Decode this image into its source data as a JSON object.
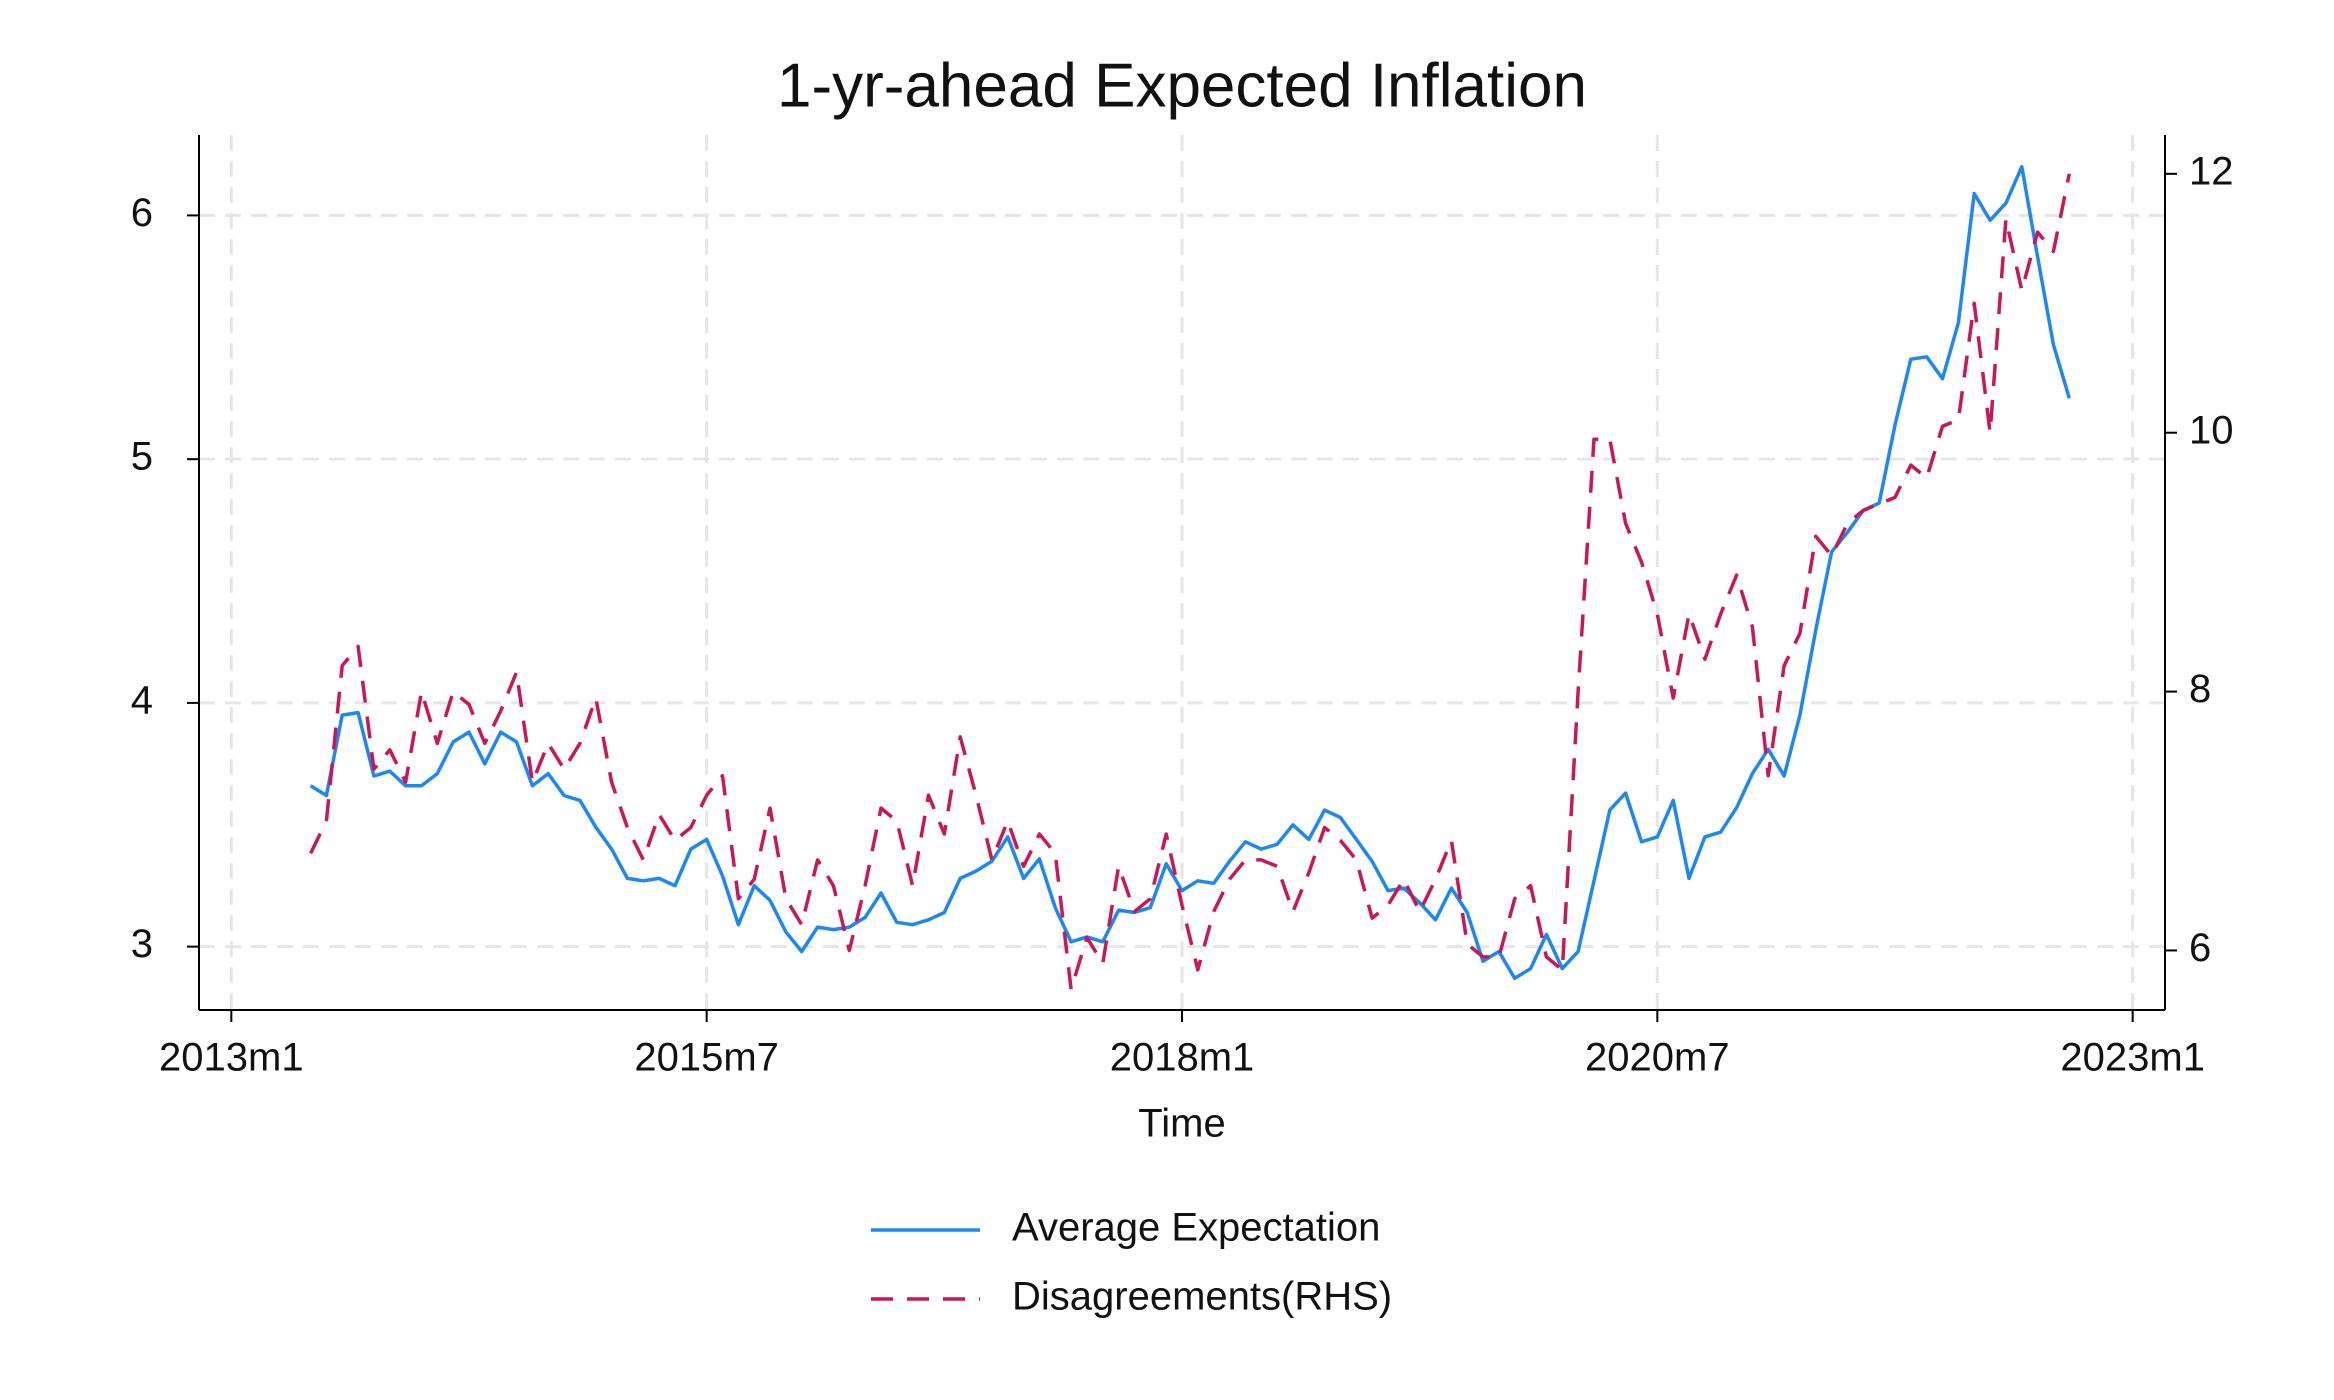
{
  "chart_data": {
    "type": "line",
    "title": "1-yr-ahead Expected Inflation",
    "xlabel": "Time",
    "x": [
      2013.4167,
      2013.5,
      2013.5833,
      2013.6667,
      2013.75,
      2013.8333,
      2013.9167,
      2014,
      2014.0833,
      2014.1667,
      2014.25,
      2014.3333,
      2014.4167,
      2014.5,
      2014.5833,
      2014.6667,
      2014.75,
      2014.8333,
      2014.9167,
      2015,
      2015.0833,
      2015.1667,
      2015.25,
      2015.3333,
      2015.4167,
      2015.5,
      2015.5833,
      2015.6667,
      2015.75,
      2015.8333,
      2015.9167,
      2016,
      2016.0833,
      2016.1667,
      2016.25,
      2016.3333,
      2016.4167,
      2016.5,
      2016.5833,
      2016.6667,
      2016.75,
      2016.8333,
      2016.9167,
      2017,
      2017.0833,
      2017.1667,
      2017.25,
      2017.3333,
      2017.4167,
      2017.5,
      2017.5833,
      2017.6667,
      2017.75,
      2017.8333,
      2017.9167,
      2018,
      2018.0833,
      2018.1667,
      2018.25,
      2018.3333,
      2018.4167,
      2018.5,
      2018.5833,
      2018.6667,
      2018.75,
      2018.8333,
      2018.9167,
      2019,
      2019.0833,
      2019.1667,
      2019.25,
      2019.3333,
      2019.4167,
      2019.5,
      2019.5833,
      2019.6667,
      2019.75,
      2019.8333,
      2019.9167,
      2020,
      2020.0833,
      2020.1667,
      2020.25,
      2020.3333,
      2020.4167,
      2020.5,
      2020.5833,
      2020.6667,
      2020.75,
      2020.8333,
      2020.9167,
      2021,
      2021.0833,
      2021.1667,
      2021.25,
      2021.3333,
      2021.4167,
      2021.5,
      2021.5833,
      2021.6667,
      2021.75,
      2021.8333,
      2021.9167,
      2022,
      2022.0833,
      2022.1667,
      2022.25,
      2022.3333,
      2022.4167,
      2022.5,
      2022.5833,
      2022.6667
    ],
    "series": [
      {
        "name": "Average Expectation",
        "color": "#1e88f0",
        "axis": "y",
        "values": [
          3.66,
          3.62,
          3.95,
          3.96,
          3.7,
          3.72,
          3.66,
          3.66,
          3.71,
          3.84,
          3.88,
          3.75,
          3.88,
          3.84,
          3.66,
          3.71,
          3.62,
          3.6,
          3.49,
          3.4,
          3.28,
          3.27,
          3.28,
          3.25,
          3.4,
          3.44,
          3.29,
          3.09,
          3.25,
          3.19,
          3.06,
          2.98,
          3.08,
          3.07,
          3.08,
          3.12,
          3.22,
          3.1,
          3.09,
          3.11,
          3.14,
          3.28,
          3.31,
          3.35,
          3.45,
          3.28,
          3.36,
          3.16,
          3.02,
          3.04,
          3.02,
          3.15,
          3.14,
          3.16,
          3.34,
          3.23,
          3.27,
          3.26,
          3.35,
          3.43,
          3.4,
          3.42,
          3.5,
          3.44,
          3.56,
          3.53,
          3.44,
          3.35,
          3.23,
          3.24,
          3.18,
          3.11,
          3.24,
          3.14,
          2.94,
          2.98,
          2.87,
          2.91,
          3.05,
          2.91,
          2.98,
          3.27,
          3.56,
          3.63,
          3.43,
          3.45,
          3.6,
          3.28,
          3.45,
          3.47,
          3.57,
          3.71,
          3.81,
          3.7,
          3.95,
          4.3,
          4.62,
          4.7,
          4.79,
          4.82,
          5.14,
          5.41,
          5.42,
          5.33,
          5.56,
          6.09,
          5.98,
          6.05,
          6.2,
          5.83,
          5.47,
          5.25
        ]
      },
      {
        "name": "Disagreements(RHS)",
        "color": "#c8175a",
        "axis": "y2",
        "dashed": true,
        "values": [
          6.75,
          7.0,
          8.2,
          8.35,
          7.4,
          7.55,
          7.3,
          8.0,
          7.6,
          8.0,
          7.9,
          7.6,
          7.85,
          8.15,
          7.3,
          7.6,
          7.4,
          7.6,
          7.95,
          7.3,
          6.95,
          6.7,
          7.05,
          6.85,
          6.95,
          7.2,
          7.35,
          6.4,
          6.55,
          7.1,
          6.4,
          6.2,
          6.7,
          6.5,
          6.0,
          6.5,
          7.1,
          7.0,
          6.5,
          7.2,
          6.9,
          7.65,
          7.2,
          6.7,
          7.0,
          6.65,
          6.9,
          6.75,
          5.7,
          6.1,
          5.9,
          6.65,
          6.3,
          6.4,
          6.9,
          6.35,
          5.85,
          6.3,
          6.55,
          6.7,
          6.7,
          6.65,
          6.3,
          6.6,
          6.95,
          6.85,
          6.7,
          6.25,
          6.35,
          6.55,
          6.3,
          6.55,
          6.85,
          6.05,
          5.95,
          5.95,
          6.4,
          6.5,
          5.95,
          5.85,
          8.0,
          9.95,
          9.95,
          9.3,
          9.0,
          8.6,
          7.95,
          8.6,
          8.25,
          8.6,
          8.9,
          8.5,
          7.35,
          8.2,
          8.45,
          9.2,
          9.05,
          9.3,
          9.4,
          9.45,
          9.5,
          9.75,
          9.65,
          10.05,
          10.1,
          11.0,
          10.0,
          11.65,
          11.1,
          11.55,
          11.4,
          12.0
        ]
      }
    ],
    "xlim": [
      2012.83,
      2023.17
    ],
    "xticks": [
      {
        "value": 2013,
        "label": "2013m1"
      },
      {
        "value": 2015.5,
        "label": "2015m7"
      },
      {
        "value": 2018,
        "label": "2018m1"
      },
      {
        "value": 2020.5,
        "label": "2020m7"
      },
      {
        "value": 2023,
        "label": "2023m1"
      }
    ],
    "ylim": [
      2.74,
      6.33
    ],
    "yticks": [
      3,
      4,
      5,
      6
    ],
    "y2lim": [
      5.54,
      12.3
    ],
    "y2ticks": [
      6,
      8,
      10,
      12
    ],
    "grid": true,
    "legend": "bottom"
  }
}
